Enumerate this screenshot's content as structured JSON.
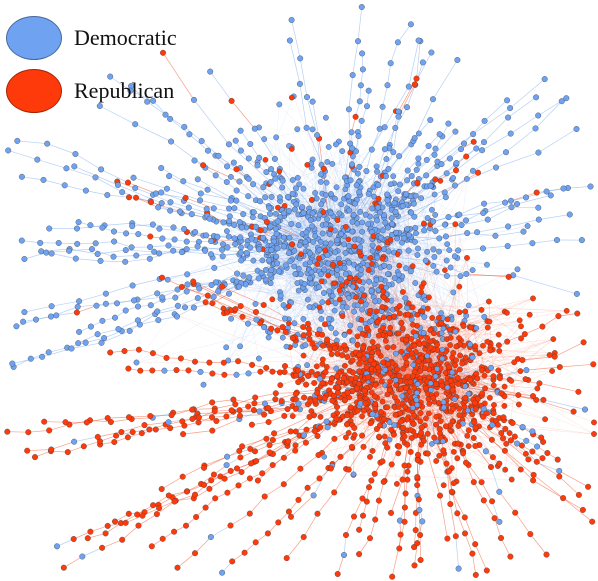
{
  "legend": {
    "items": [
      {
        "label": "Democratic",
        "color": "#6FA3F2"
      },
      {
        "label": "Republican",
        "color": "#FF3A0A"
      }
    ]
  },
  "colors": {
    "democratic_node": "#6FA3F2",
    "democratic_edge": "#7AA9EE",
    "republican_node": "#FF3A0A",
    "republican_edge": "#F0502A",
    "node_stroke": "#3a3a3a"
  }
}
